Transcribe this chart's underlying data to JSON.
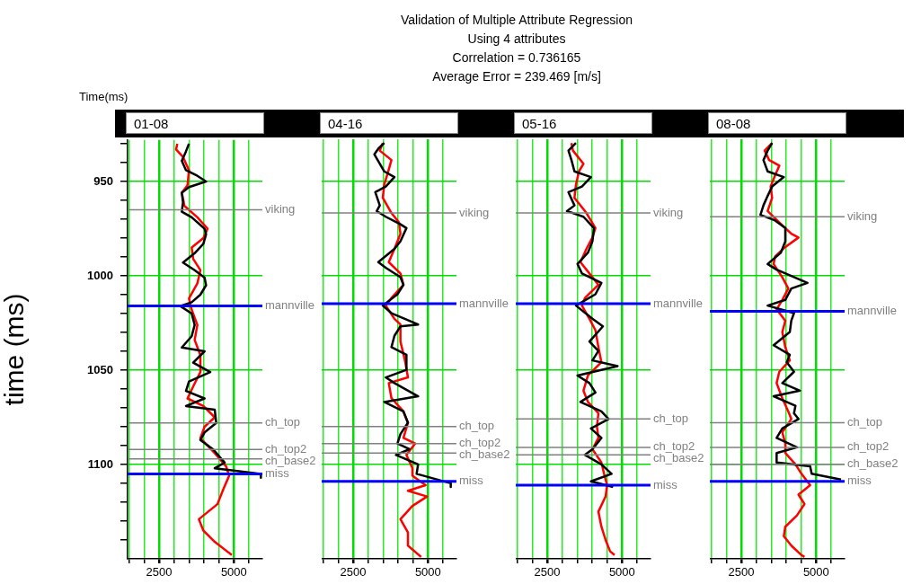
{
  "chart_data": [
    {
      "type": "line",
      "orientation": "horizontal",
      "title": "01-08",
      "ylabel": "time (ms)",
      "marker": "none",
      "grid": true,
      "annotations": [
        "Validation of Multiple Attribute Regression",
        "Using 4 attributes",
        "Correlation = 0.736165",
        "Average Error = 239.469 [m/s]",
        "Time(ms)"
      ],
      "xlim": [
        1450,
        5950
      ],
      "xticks": [
        {
          "value": 1500,
          "label": null
        },
        {
          "value": 2000,
          "label": null
        },
        {
          "value": 2500,
          "label": "2500"
        },
        {
          "value": 3000,
          "label": null
        },
        {
          "value": 3500,
          "label": null
        },
        {
          "value": 4000,
          "label": null
        },
        {
          "value": 4500,
          "label": null
        },
        {
          "value": 5000,
          "label": "5000"
        },
        {
          "value": 5500,
          "label": null
        }
      ],
      "ylim": [
        1150,
        928
      ],
      "yticks": [
        {
          "value": 930,
          "label": null
        },
        {
          "value": 940,
          "label": null
        },
        950,
        {
          "value": 960,
          "label": null
        },
        {
          "value": 970,
          "label": null
        },
        {
          "value": 980,
          "label": null
        },
        {
          "value": 990,
          "label": null
        },
        1000,
        {
          "value": 1010,
          "label": null
        },
        {
          "value": 1020,
          "label": null
        },
        {
          "value": 1030,
          "label": null
        },
        {
          "value": 1040,
          "label": null
        },
        1050,
        {
          "value": 1060,
          "label": null
        },
        {
          "value": 1070,
          "label": null
        },
        {
          "value": 1080,
          "label": null
        },
        {
          "value": 1090,
          "label": null
        },
        1100,
        {
          "value": 1110,
          "label": null
        },
        {
          "value": 1120,
          "label": null
        },
        {
          "value": 1130,
          "label": null
        },
        {
          "value": 1140,
          "label": null
        }
      ],
      "series": [
        {
          "color": "#000000",
          "x": [
            930,
            934,
            939,
            944,
            947,
            950,
            953,
            956,
            961,
            966,
            969,
            975,
            978,
            983,
            988,
            993,
            997,
            1001,
            1005,
            1010,
            1014,
            1016,
            1020,
            1026,
            1032,
            1038,
            1040,
            1046,
            1051,
            1056,
            1061,
            1065,
            1069,
            1071,
            1078,
            1083,
            1087,
            1092,
            1099,
            1102,
            1105,
            1107
          ],
          "values": [
            3500,
            3400,
            3260,
            3400,
            3780,
            4070,
            3500,
            3260,
            3300,
            3260,
            3590,
            4020,
            4070,
            3980,
            3690,
            3300,
            3690,
            4020,
            4070,
            3880,
            3590,
            3210,
            3590,
            3690,
            3590,
            3260,
            4020,
            3640,
            4210,
            3500,
            3400,
            4020,
            3400,
            4360,
            4410,
            4020,
            3880,
            4310,
            4690,
            4360,
            5900,
            5900
          ]
        },
        {
          "color": "#ff0000",
          "x": [
            930,
            933,
            937,
            944,
            952,
            956,
            963,
            969,
            975,
            980,
            985,
            991,
            997,
            1004,
            1012,
            1018,
            1026,
            1034,
            1042,
            1051,
            1057,
            1065,
            1069,
            1075,
            1080,
            1086,
            1094,
            1101,
            1106,
            1113,
            1121,
            1129,
            1135,
            1141,
            1148
          ],
          "values": [
            3110,
            3070,
            3300,
            3500,
            3450,
            3260,
            3350,
            3780,
            4120,
            3980,
            3590,
            3640,
            3880,
            3780,
            3500,
            3590,
            3780,
            3690,
            3880,
            3880,
            3690,
            3450,
            3980,
            4360,
            4020,
            3880,
            4360,
            4740,
            4840,
            4650,
            4450,
            3830,
            3980,
            4360,
            4930
          ]
        }
      ],
      "ref_lines": [
        {
          "axis": "y",
          "value": 965,
          "label": "viking",
          "color": "#808080"
        },
        {
          "axis": "y",
          "value": 1016,
          "label": "mannville",
          "color": "#0000ff"
        },
        {
          "axis": "y",
          "value": 1078,
          "label": "ch_top",
          "color": "#808080"
        },
        {
          "axis": "y",
          "value": 1092,
          "label": "ch_top2",
          "color": "#808080"
        },
        {
          "axis": "y",
          "value": 1097,
          "label": "ch_base2",
          "color": "#808080"
        },
        {
          "axis": "y",
          "value": 1105,
          "label": "miss",
          "color": "#0000ff"
        }
      ]
    },
    {
      "type": "line",
      "orientation": "horizontal",
      "title": "04-16",
      "marker": "none",
      "grid": true,
      "tick_labels": "x",
      "xlim": [
        1450,
        5950
      ],
      "xticks": [
        {
          "value": 1500,
          "label": null
        },
        {
          "value": 2000,
          "label": null
        },
        {
          "value": 2500,
          "label": "2500"
        },
        {
          "value": 3000,
          "label": null
        },
        {
          "value": 3500,
          "label": null
        },
        {
          "value": 4000,
          "label": null
        },
        {
          "value": 4500,
          "label": null
        },
        {
          "value": 5000,
          "label": "5000"
        },
        {
          "value": 5500,
          "label": null
        }
      ],
      "ylim": [
        1150,
        928
      ],
      "yticks": [
        {
          "value": 950,
          "label": null
        },
        {
          "value": 1000,
          "label": null
        },
        {
          "value": 1050,
          "label": null
        },
        {
          "value": 1100,
          "label": null
        }
      ],
      "series": [
        {
          "color": "#000000",
          "x": [
            930,
            933,
            936,
            945,
            948,
            953,
            956,
            963,
            966,
            969,
            973,
            975,
            982,
            986,
            993,
            996,
            1001,
            1005,
            1010,
            1016,
            1020,
            1026,
            1027,
            1032,
            1038,
            1042,
            1050,
            1054,
            1057,
            1064,
            1067,
            1072,
            1078,
            1084,
            1089,
            1092,
            1095,
            1100,
            1105,
            1110,
            1112
          ],
          "values": [
            3540,
            3340,
            3210,
            3540,
            3880,
            3590,
            3240,
            3390,
            3290,
            3590,
            4080,
            4280,
            4080,
            3880,
            3340,
            3590,
            4080,
            4180,
            3980,
            3490,
            3780,
            4670,
            4080,
            3880,
            3780,
            4280,
            4280,
            3590,
            3880,
            4670,
            3540,
            4180,
            4330,
            4080,
            3980,
            4380,
            3930,
            4670,
            4620,
            5760,
            5760
          ]
        },
        {
          "color": "#ff0000",
          "x": [
            930,
            934,
            939,
            944,
            952,
            959,
            967,
            972,
            978,
            986,
            993,
            999,
            1005,
            1012,
            1016,
            1023,
            1026,
            1035,
            1045,
            1054,
            1057,
            1065,
            1072,
            1078,
            1086,
            1089,
            1095,
            1102,
            1106,
            1111,
            1114,
            1117,
            1122,
            1129,
            1136,
            1143,
            1149
          ],
          "values": [
            3490,
            3390,
            3780,
            3690,
            3540,
            3490,
            3780,
            4030,
            4080,
            3880,
            3690,
            4080,
            4180,
            3780,
            3590,
            3880,
            4080,
            4080,
            4230,
            4330,
            3690,
            3780,
            4180,
            4330,
            4180,
            4570,
            4280,
            4480,
            4480,
            4920,
            4330,
            4970,
            4480,
            4080,
            4330,
            4330,
            4770
          ]
        }
      ],
      "ref_lines": [
        {
          "axis": "y",
          "value": 967,
          "label": "viking",
          "color": "#808080"
        },
        {
          "axis": "y",
          "value": 1015,
          "label": "mannville",
          "color": "#0000ff"
        },
        {
          "axis": "y",
          "value": 1080,
          "label": "ch_top",
          "color": "#808080"
        },
        {
          "axis": "y",
          "value": 1089,
          "label": "ch_top2",
          "color": "#808080"
        },
        {
          "axis": "y",
          "value": 1094,
          "label": "ch_base2",
          "color": "#808080"
        },
        {
          "axis": "y",
          "value": 1109,
          "label": "miss",
          "color": "#0000ff"
        }
      ]
    },
    {
      "type": "line",
      "orientation": "horizontal",
      "title": "05-16",
      "marker": "none",
      "grid": true,
      "tick_labels": "x",
      "xlim": [
        1450,
        5950
      ],
      "xticks": [
        {
          "value": 1500,
          "label": null
        },
        {
          "value": 2000,
          "label": null
        },
        {
          "value": 2500,
          "label": "2500"
        },
        {
          "value": 3000,
          "label": null
        },
        {
          "value": 3500,
          "label": null
        },
        {
          "value": 4000,
          "label": null
        },
        {
          "value": 4500,
          "label": null
        },
        {
          "value": 5000,
          "label": "5000"
        },
        {
          "value": 5500,
          "label": null
        }
      ],
      "ylim": [
        1150,
        928
      ],
      "yticks": [
        {
          "value": 950,
          "label": null
        },
        {
          "value": 1000,
          "label": null
        },
        {
          "value": 1050,
          "label": null
        },
        {
          "value": 1100,
          "label": null
        }
      ],
      "series": [
        {
          "color": "#000000",
          "x": [
            930,
            934,
            939,
            945,
            948,
            953,
            956,
            963,
            966,
            969,
            975,
            982,
            988,
            994,
            999,
            1004,
            1010,
            1016,
            1023,
            1027,
            1035,
            1040,
            1045,
            1048,
            1053,
            1057,
            1062,
            1067,
            1072,
            1076,
            1081,
            1086,
            1092,
            1095,
            1100,
            1105,
            1109,
            1112
          ],
          "values": [
            3460,
            3210,
            3310,
            3410,
            3960,
            3660,
            3210,
            3410,
            3160,
            3710,
            4060,
            4010,
            3860,
            3510,
            3660,
            4310,
            4110,
            3460,
            4010,
            4360,
            3910,
            4210,
            4010,
            4850,
            3510,
            3910,
            4110,
            3610,
            4310,
            4550,
            3960,
            4310,
            4010,
            3760,
            4310,
            4650,
            3960,
            4700
          ]
        },
        {
          "color": "#ff0000",
          "x": [
            930,
            934,
            941,
            945,
            952,
            959,
            967,
            975,
            980,
            986,
            993,
            999,
            1005,
            1012,
            1016,
            1023,
            1029,
            1038,
            1046,
            1053,
            1061,
            1067,
            1073,
            1080,
            1086,
            1092,
            1099,
            1105,
            1111,
            1117,
            1125,
            1133,
            1140,
            1146,
            1148
          ],
          "values": [
            3310,
            3360,
            3710,
            3560,
            3460,
            3410,
            3810,
            4110,
            4010,
            3810,
            3610,
            3910,
            4210,
            3760,
            3660,
            3910,
            4110,
            4210,
            4310,
            3860,
            3710,
            3860,
            4210,
            4160,
            4210,
            4010,
            4310,
            4400,
            4500,
            4450,
            4210,
            4310,
            4450,
            4600,
            4750
          ]
        }
      ],
      "ref_lines": [
        {
          "axis": "y",
          "value": 967,
          "label": "viking",
          "color": "#808080"
        },
        {
          "axis": "y",
          "value": 1015,
          "label": "mannville",
          "color": "#0000ff"
        },
        {
          "axis": "y",
          "value": 1076,
          "label": "ch_top",
          "color": "#808080"
        },
        {
          "axis": "y",
          "value": 1091,
          "label": "ch_top2",
          "color": "#808080"
        },
        {
          "axis": "y",
          "value": 1095,
          "label": "ch_base2",
          "color": "#808080"
        },
        {
          "axis": "y",
          "value": 1111,
          "label": "miss",
          "color": "#0000ff"
        }
      ]
    },
    {
      "type": "line",
      "orientation": "horizontal",
      "title": "08-08",
      "marker": "none",
      "grid": true,
      "tick_labels": "x",
      "xlim": [
        1450,
        5950
      ],
      "xticks": [
        {
          "value": 1500,
          "label": null
        },
        {
          "value": 2000,
          "label": null
        },
        {
          "value": 2500,
          "label": "2500"
        },
        {
          "value": 3000,
          "label": null
        },
        {
          "value": 3500,
          "label": null
        },
        {
          "value": 4000,
          "label": null
        },
        {
          "value": 4500,
          "label": null
        },
        {
          "value": 5000,
          "label": "5000"
        },
        {
          "value": 5500,
          "label": null
        }
      ],
      "ylim": [
        1150,
        928
      ],
      "yticks": [
        {
          "value": 950,
          "label": null
        },
        {
          "value": 1000,
          "label": null
        },
        {
          "value": 1050,
          "label": null
        },
        {
          "value": 1100,
          "label": null
        }
      ],
      "series": [
        {
          "color": "#000000",
          "x": [
            930,
            934,
            939,
            945,
            948,
            953,
            958,
            963,
            968,
            971,
            975,
            982,
            988,
            994,
            997,
            1004,
            1007,
            1013,
            1016,
            1020,
            1024,
            1030,
            1037,
            1042,
            1046,
            1051,
            1057,
            1061,
            1064,
            1069,
            1073,
            1076,
            1081,
            1086,
            1091,
            1094,
            1099,
            1101,
            1105,
            1108
          ],
          "values": [
            3530,
            3380,
            3240,
            3380,
            3920,
            3530,
            3380,
            3240,
            3140,
            3630,
            3970,
            3970,
            3820,
            3380,
            3680,
            4710,
            4170,
            3970,
            3380,
            4260,
            4170,
            4120,
            3580,
            4120,
            4020,
            4260,
            3870,
            4460,
            3580,
            4310,
            4260,
            4410,
            3870,
            3680,
            4360,
            3680,
            3680,
            4800,
            4850,
            5830
          ]
        },
        {
          "color": "#ff0000",
          "x": [
            930,
            934,
            939,
            942,
            947,
            953,
            959,
            966,
            972,
            978,
            980,
            985,
            990,
            994,
            1001,
            1007,
            1013,
            1018,
            1024,
            1030,
            1038,
            1045,
            1051,
            1057,
            1065,
            1072,
            1076,
            1083,
            1089,
            1094,
            1100,
            1105,
            1111,
            1116,
            1121,
            1127,
            1133,
            1138,
            1143,
            1148,
            1149
          ],
          "values": [
            3530,
            3280,
            3430,
            3770,
            3630,
            3480,
            3530,
            3380,
            3770,
            4170,
            4410,
            3970,
            3630,
            3580,
            3870,
            4070,
            3870,
            3680,
            3970,
            3870,
            3970,
            4120,
            3770,
            3680,
            3870,
            4070,
            4170,
            3870,
            3970,
            3970,
            4310,
            4510,
            4800,
            4410,
            4610,
            4360,
            3970,
            3920,
            4170,
            4510,
            4610
          ]
        }
      ],
      "ref_lines": [
        {
          "axis": "y",
          "value": 969,
          "label": "viking",
          "color": "#808080"
        },
        {
          "axis": "y",
          "value": 1019,
          "label": "mannville",
          "color": "#0000ff"
        },
        {
          "axis": "y",
          "value": 1078,
          "label": "ch_top",
          "color": "#808080"
        },
        {
          "axis": "y",
          "value": 1091,
          "label": "ch_top2",
          "color": "#808080"
        },
        {
          "axis": "y",
          "value": 1100,
          "label": "ch_base2",
          "color": "#808080"
        },
        {
          "axis": "y",
          "value": 1109,
          "label": "miss",
          "color": "#0000ff"
        }
      ]
    }
  ]
}
